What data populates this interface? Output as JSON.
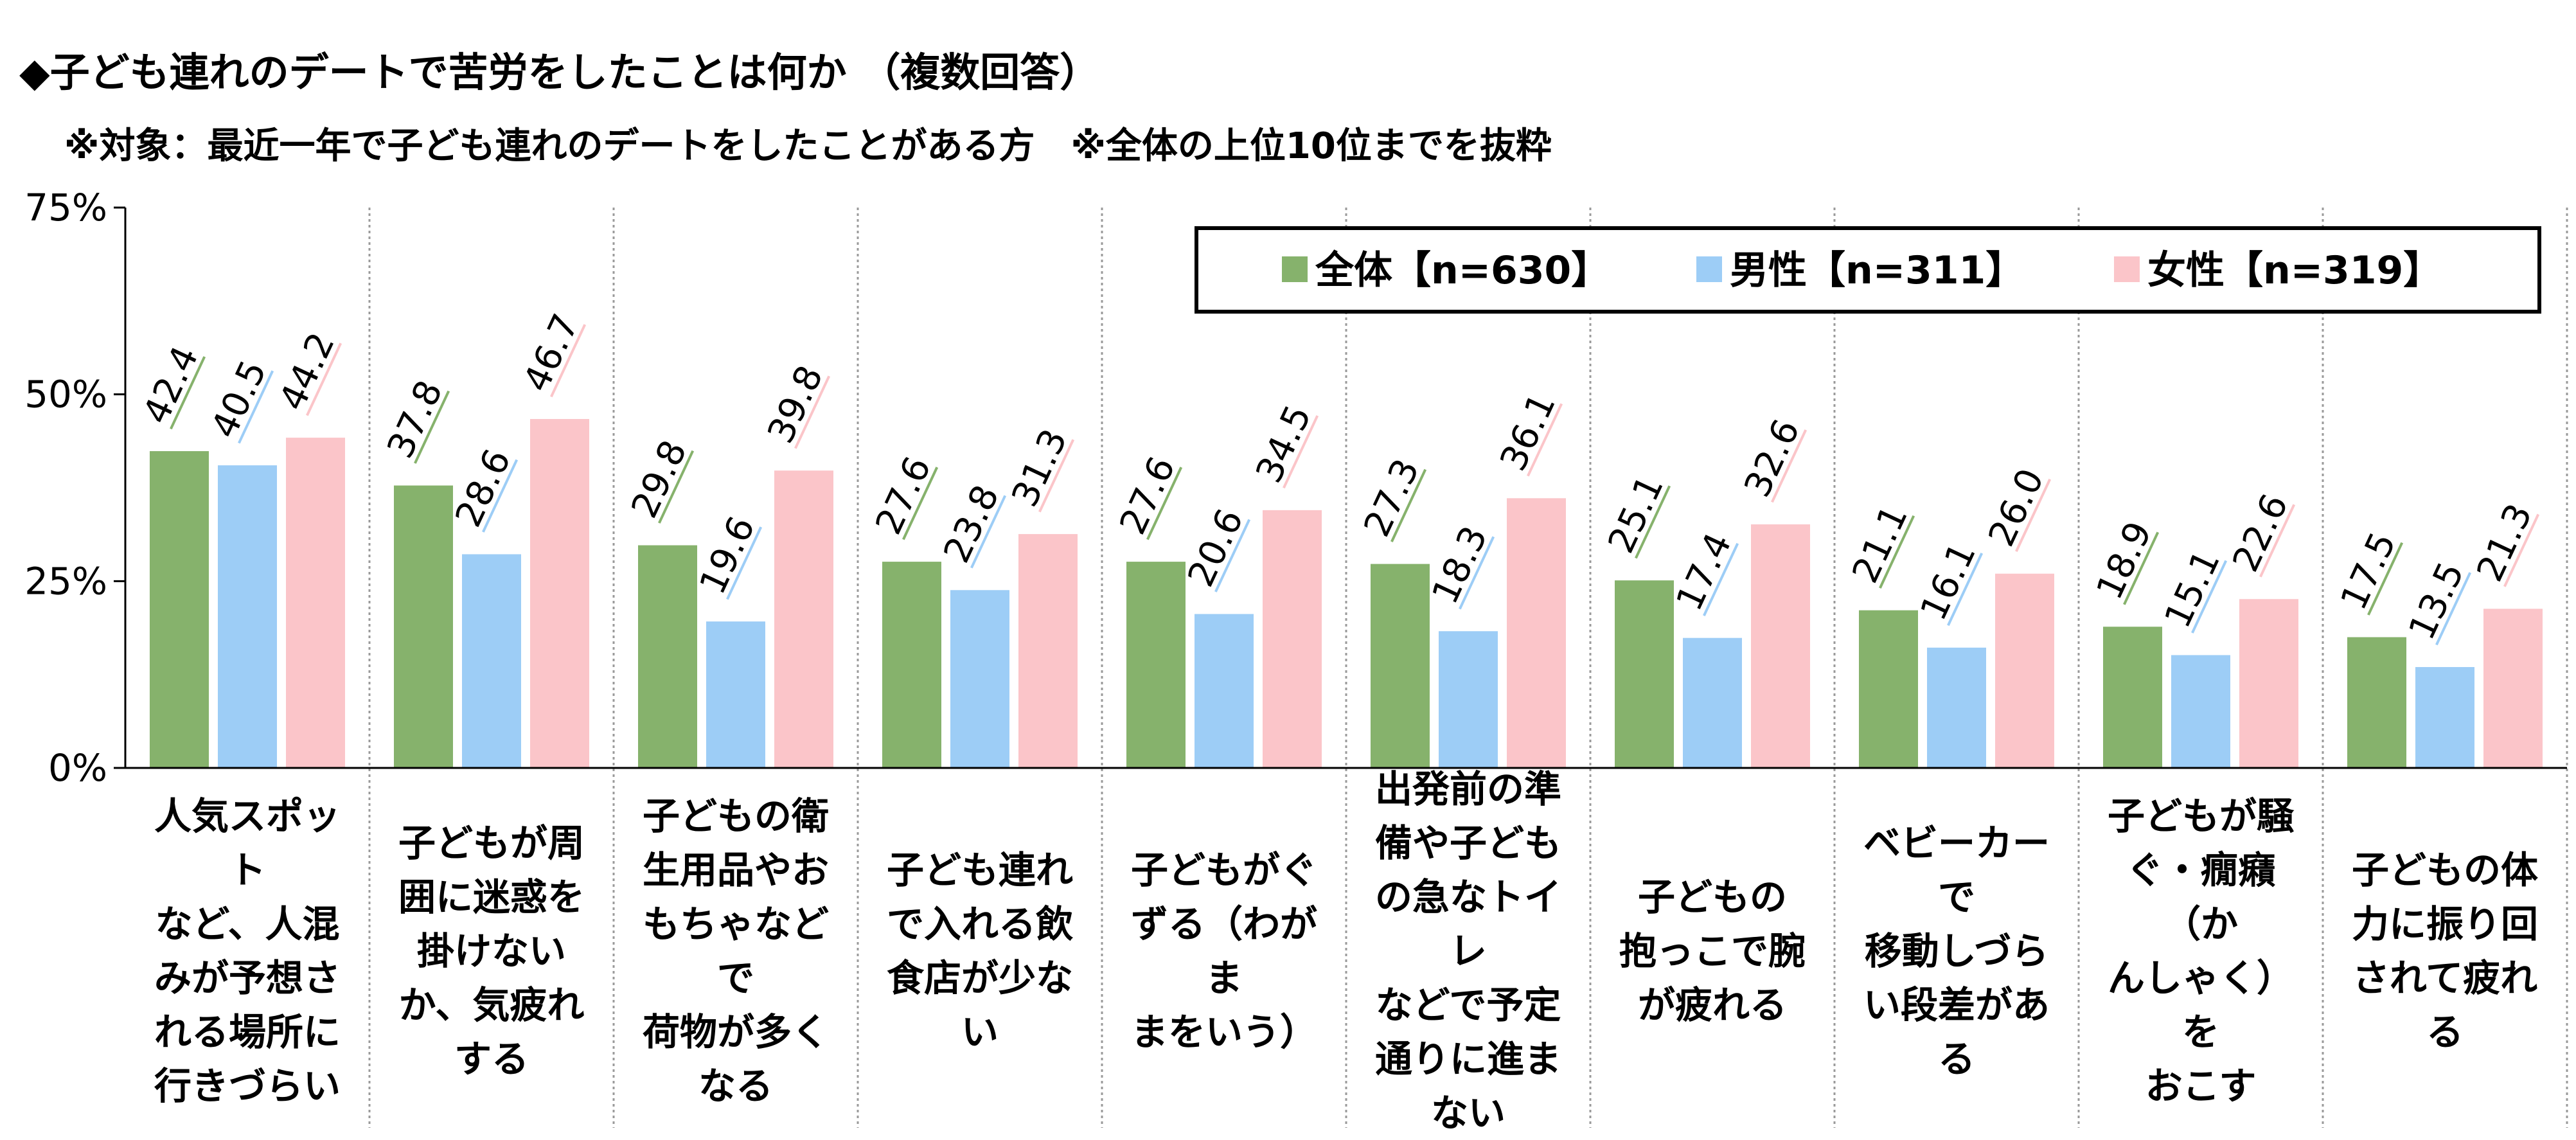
{
  "title": "◆子ども連れのデートで苦労をしたことは何か （複数回答）",
  "subtitle": "※対象：最近一年で子ども連れのデートをしたことがある方　※全体の上位10位までを抜粋",
  "chart_data": {
    "type": "bar",
    "ylim": [
      0,
      75
    ],
    "yticks": [
      "0%",
      "25%",
      "50%",
      "75%"
    ],
    "ytick_values": [
      0,
      25,
      50,
      75
    ],
    "legend_position": "top-right",
    "categories": [
      "人気スポットなど、人混みが予想される場所に行きづらい",
      "子どもが周囲に迷惑を掛けないか、気疲れする",
      "子どもの衛生用品やおもちゃなどで荷物が多くなる",
      "子ども連れで入れる飲食店が少ない",
      "子どもがぐずる（わがままをいう）",
      "出発前の準備や子どもの急なトイレなどで予定通りに進まない",
      "子どもの抱っこで腕が疲れる",
      "ベビーカーで移動しづらい段差がある",
      "子どもが騒ぐ・癇癪（かんしゃく）をおこす",
      "子どもの体力に振り回されて疲れる"
    ],
    "category_lines": [
      [
        "人気スポット",
        "など、人混",
        "みが予想さ",
        "れる場所に",
        "行きづらい"
      ],
      [
        "子どもが周",
        "囲に迷惑を",
        "掛けない",
        "か、気疲れ",
        "する"
      ],
      [
        "子どもの衛",
        "生用品やお",
        "もちゃなどで",
        "荷物が多く",
        "なる"
      ],
      [
        "子ども連れ",
        "で入れる飲",
        "食店が少な",
        "い"
      ],
      [
        "子どもがぐ",
        "ずる（わがま",
        "まをいう）"
      ],
      [
        "出発前の準",
        "備や子ども",
        "の急なトイレ",
        "などで予定",
        "通りに進ま",
        "ない"
      ],
      [
        "子どもの",
        "抱っこで腕",
        "が疲れる"
      ],
      [
        "ベビーカーで",
        "移動しづら",
        "い段差があ",
        "る"
      ],
      [
        "子どもが騒",
        "ぐ・癇癪（か",
        "んしゃく）を",
        "おこす"
      ],
      [
        "子どもの体",
        "力に振り回",
        "されて疲れ",
        "る"
      ]
    ],
    "series": [
      {
        "name": "全体【n=630】",
        "color": "#86b26c",
        "values": [
          42.4,
          37.8,
          29.8,
          27.6,
          27.6,
          27.3,
          25.1,
          21.1,
          18.9,
          17.5
        ]
      },
      {
        "name": "男性【n=311】",
        "color": "#9dcdf6",
        "values": [
          40.5,
          28.6,
          19.6,
          23.8,
          20.6,
          18.3,
          17.4,
          16.1,
          15.1,
          13.5
        ]
      },
      {
        "name": "女性【n=319】",
        "color": "#fbc5c9",
        "values": [
          44.2,
          46.7,
          39.8,
          31.3,
          34.5,
          36.1,
          32.6,
          26.0,
          22.6,
          21.3
        ]
      }
    ]
  }
}
